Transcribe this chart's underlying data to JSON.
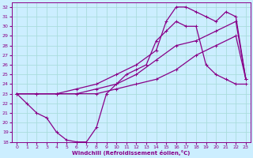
{
  "xlabel": "Windchill (Refroidissement éolien,°C)",
  "bg_color": "#cceeff",
  "grid_color": "#aadddd",
  "line_color": "#880088",
  "xlim": [
    -0.5,
    23.5
  ],
  "ylim": [
    18,
    32.5
  ],
  "xticks": [
    0,
    1,
    2,
    3,
    4,
    5,
    6,
    7,
    8,
    9,
    10,
    11,
    12,
    13,
    14,
    15,
    16,
    17,
    18,
    19,
    20,
    21,
    22,
    23
  ],
  "yticks": [
    18,
    19,
    20,
    21,
    22,
    23,
    24,
    25,
    26,
    27,
    28,
    29,
    30,
    31,
    32
  ],
  "curve1_x": [
    0,
    1,
    2,
    3,
    4,
    5,
    6,
    7,
    8,
    9,
    10,
    11,
    12,
    13,
    14,
    15,
    16,
    17,
    18,
    19,
    20,
    21,
    22,
    23
  ],
  "curve1_y": [
    23,
    22,
    21,
    20.5,
    19,
    18.2,
    18,
    18,
    19.5,
    23,
    24,
    25,
    25.5,
    26,
    28.5,
    29.5,
    30.5,
    30,
    30,
    26,
    25,
    24.5,
    24,
    24
  ],
  "curve2_x": [
    0,
    2,
    4,
    6,
    8,
    10,
    12,
    14,
    16,
    18,
    20,
    22,
    23
  ],
  "curve2_y": [
    23,
    23,
    23,
    23,
    23,
    23.5,
    24,
    24.5,
    25.5,
    27,
    28,
    29,
    24.5
  ],
  "curve3_x": [
    0,
    2,
    4,
    6,
    8,
    10,
    12,
    14,
    15,
    16,
    17,
    18,
    19,
    20,
    21,
    22,
    23
  ],
  "curve3_y": [
    23,
    23,
    23,
    23.5,
    24,
    25,
    26,
    27.5,
    30.5,
    32,
    32,
    31.5,
    31,
    30.5,
    31.5,
    31,
    24.5
  ],
  "curve4_x": [
    0,
    2,
    4,
    6,
    8,
    10,
    12,
    14,
    16,
    18,
    20,
    22,
    23
  ],
  "curve4_y": [
    23,
    23,
    23,
    23,
    23.5,
    24,
    25,
    26.5,
    28,
    28.5,
    29.5,
    30.5,
    24.5
  ]
}
